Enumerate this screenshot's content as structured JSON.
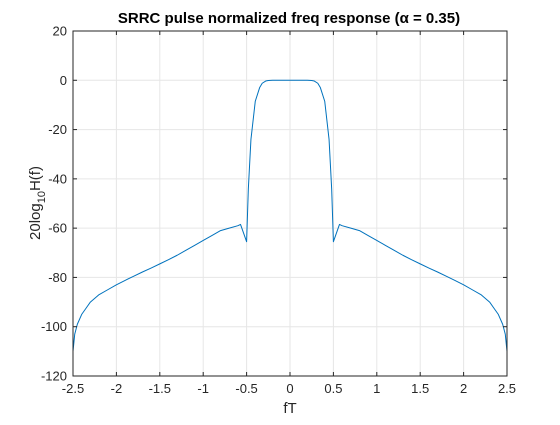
{
  "chart_data": {
    "type": "line",
    "title": "SRRC pulse normalized freq response (α = 0.35)",
    "xlabel": "fT",
    "ylabel_base": "20log",
    "ylabel_sub": "10",
    "ylabel_tail": "H(f)",
    "xlim": [
      -2.5,
      2.5
    ],
    "ylim": [
      -120,
      20
    ],
    "xticks": [
      -2.5,
      -2,
      -1.5,
      -1,
      -0.5,
      0,
      0.5,
      1,
      1.5,
      2,
      2.5
    ],
    "xtick_labels": [
      "-2.5",
      "-2",
      "-1.5",
      "-1",
      "-0.5",
      "0",
      "0.5",
      "1",
      "1.5",
      "2",
      "2.5"
    ],
    "yticks": [
      -120,
      -100,
      -80,
      -60,
      -40,
      -20,
      0,
      20
    ],
    "ytick_labels": [
      "-120",
      "-100",
      "-80",
      "-60",
      "-40",
      "-20",
      "0",
      "20"
    ],
    "grid": true,
    "colors": {
      "line": "#0072BD",
      "grid": "#e6e6e6",
      "axes": "#262626"
    },
    "series": [
      {
        "x": [
          -2.5,
          -2.48,
          -2.45,
          -2.4,
          -2.35,
          -2.3,
          -2.2,
          -2.1,
          -2.0,
          -1.9,
          -1.8,
          -1.7,
          -1.6,
          -1.5,
          -1.4,
          -1.3,
          -1.2,
          -1.1,
          -1.0,
          -0.9,
          -0.8,
          -0.7,
          -0.6,
          -0.57,
          -0.5,
          -0.48,
          -0.45,
          -0.4,
          -0.35,
          -0.32,
          -0.28,
          -0.25,
          -0.2,
          -0.15,
          -0.1,
          -0.05,
          0,
          0.05,
          0.1,
          0.15,
          0.2,
          0.25,
          0.28,
          0.32,
          0.35,
          0.4,
          0.45,
          0.48,
          0.5,
          0.57,
          0.6,
          0.7,
          0.8,
          0.9,
          1.0,
          1.1,
          1.2,
          1.3,
          1.4,
          1.5,
          1.6,
          1.7,
          1.8,
          1.9,
          2.0,
          2.1,
          2.2,
          2.3,
          2.35,
          2.4,
          2.45,
          2.48,
          2.5
        ],
        "y": [
          -110,
          -103,
          -99,
          -95,
          -92.5,
          -90,
          -87,
          -85,
          -83,
          -81.2,
          -79.5,
          -77.8,
          -76.2,
          -74.5,
          -72.8,
          -71,
          -69,
          -67,
          -65,
          -63,
          -61,
          -60,
          -59,
          -58.5,
          -65.5,
          -44,
          -24,
          -8.5,
          -3,
          -1.2,
          -0.3,
          -0.1,
          0,
          0,
          0,
          0,
          0,
          0,
          0,
          0,
          0,
          -0.1,
          -0.3,
          -1.2,
          -3,
          -8.5,
          -24,
          -44,
          -65.5,
          -58.5,
          -59,
          -60,
          -61,
          -63,
          -65,
          -67,
          -69,
          -71,
          -72.8,
          -74.5,
          -76.2,
          -77.8,
          -79.5,
          -81.2,
          -83,
          -85,
          -87,
          -90,
          -92.5,
          -95,
          -99,
          -103,
          -110
        ]
      }
    ]
  }
}
